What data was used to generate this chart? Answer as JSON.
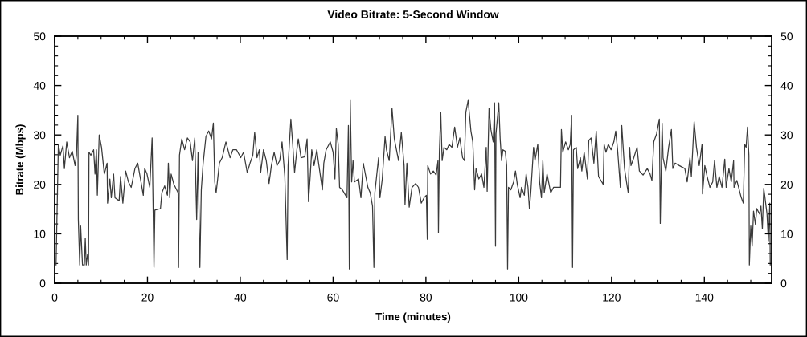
{
  "chart_data": {
    "type": "line",
    "title": "Video Bitrate: 5-Second Window",
    "xlabel": "Time (minutes)",
    "ylabel": "Bitrate (Mbps)",
    "x": [
      0.3,
      0.8,
      1.2,
      1.8,
      2.1,
      2.6,
      3.2,
      3.8,
      4.4,
      4.7,
      5.0,
      5.1,
      5.4,
      5.6,
      6.0,
      6.4,
      6.6,
      6.8,
      7.1,
      7.3,
      7.4,
      7.8,
      8.4,
      8.7,
      9.0,
      9.2,
      9.6,
      10.1,
      10.7,
      11.3,
      11.4,
      11.9,
      12.2,
      12.7,
      13.0,
      13.9,
      14.2,
      14.7,
      15.3,
      15.9,
      16.5,
      17.3,
      17.9,
      18.5,
      19.1,
      19.4,
      19.9,
      20.5,
      21.0,
      21.4,
      21.6,
      22.8,
      23.1,
      23.7,
      24.3,
      24.5,
      24.8,
      25.1,
      25.7,
      26.6,
      26.7,
      26.9,
      27.4,
      28.0,
      28.6,
      29.2,
      29.7,
      30.2,
      30.6,
      30.9,
      31.3,
      31.6,
      32.0,
      32.6,
      33.2,
      33.8,
      34.2,
      34.5,
      34.8,
      35.5,
      36.1,
      36.9,
      37.8,
      38.4,
      39.2,
      40.1,
      40.7,
      41.5,
      42.1,
      42.7,
      43.1,
      43.6,
      44.1,
      44.4,
      45.0,
      45.6,
      46.2,
      46.7,
      47.3,
      47.9,
      48.5,
      49.0,
      49.6,
      50.1,
      50.3,
      50.9,
      51.3,
      51.7,
      52.2,
      52.5,
      53.1,
      53.9,
      54.4,
      54.7,
      55.1,
      55.4,
      55.9,
      56.5,
      56.8,
      57.7,
      58.0,
      58.5,
      59.4,
      60.0,
      60.4,
      60.7,
      61.1,
      61.4,
      62.0,
      63.0,
      63.3,
      63.5,
      63.7,
      64.0,
      64.3,
      64.6,
      65.5,
      66.0,
      66.5,
      67.5,
      68.0,
      68.5,
      68.8,
      69.0,
      69.8,
      70.1,
      70.6,
      71.2,
      71.5,
      72.1,
      72.7,
      73.2,
      74.1,
      74.7,
      75.3,
      75.5,
      75.9,
      76.4,
      77.0,
      77.8,
      78.4,
      79.0,
      79.6,
      80.1,
      80.3,
      80.4,
      81.0,
      81.6,
      82.2,
      82.6,
      82.7,
      82.9,
      83.2,
      83.5,
      83.9,
      84.5,
      85.0,
      85.6,
      86.2,
      86.8,
      87.3,
      87.9,
      88.3,
      88.6,
      89.1,
      89.7,
      90.1,
      90.5,
      90.8,
      91.4,
      92.0,
      92.5,
      93.0,
      93.2,
      93.6,
      94.0,
      94.5,
      94.8,
      95.0,
      95.1,
      95.7,
      96.0,
      96.3,
      96.6,
      97.1,
      97.4,
      97.6,
      97.8,
      98.3,
      98.9,
      99.3,
      99.7,
      100.3,
      100.6,
      101.2,
      101.6,
      102.0,
      102.3,
      102.6,
      103.2,
      103.5,
      104.1,
      104.5,
      104.9,
      105.2,
      105.5,
      106.1,
      106.9,
      107.5,
      109.0,
      109.2,
      109.5,
      110.1,
      110.7,
      111.1,
      111.4,
      111.6,
      111.8,
      112.4,
      112.7,
      113.3,
      113.6,
      114.1,
      114.8,
      115.1,
      115.6,
      116.2,
      116.7,
      117.2,
      117.9,
      118.2,
      118.4,
      118.8,
      119.3,
      119.9,
      120.5,
      120.9,
      121.3,
      121.9,
      122.2,
      122.8,
      123.4,
      123.6,
      123.9,
      124.2,
      124.8,
      125.5,
      126.0,
      126.8,
      127.7,
      128.3,
      128.7,
      129.1,
      129.7,
      130.3,
      130.5,
      130.9,
      131.1,
      131.7,
      132.3,
      132.9,
      133.2,
      133.7,
      134.6,
      135.8,
      136.3,
      136.9,
      137.2,
      137.8,
      138.3,
      138.9,
      139.5,
      139.6,
      140.1,
      140.6,
      141.2,
      141.8,
      142.2,
      142.7,
      143.2,
      143.8,
      144.4,
      144.7,
      145.3,
      145.8,
      146.3,
      146.4,
      147.0,
      147.9,
      148.4,
      148.7,
      149.0,
      149.3,
      149.6,
      149.7,
      150.0,
      150.3,
      150.6,
      151.0,
      151.3,
      151.9,
      152.2,
      152.5,
      152.8,
      153.0,
      153.5,
      153.8,
      154.1,
      154.2
    ],
    "series": [
      {
        "color": "#3a3a3a",
        "values": [
          3.7,
          28.1,
          25.9,
          27.8,
          23.2,
          28.6,
          25.4,
          26.7,
          23.8,
          25.9,
          34.0,
          12.9,
          3.7,
          11.6,
          3.7,
          3.7,
          9.1,
          3.7,
          5.9,
          3.7,
          26.5,
          25.9,
          27.0,
          22.1,
          27.0,
          17.8,
          30.0,
          27.5,
          22.1,
          24.3,
          16.2,
          21.1,
          17.3,
          22.1,
          17.3,
          16.7,
          21.6,
          16.2,
          22.7,
          20.5,
          19.4,
          23.2,
          24.3,
          21.1,
          17.8,
          23.2,
          22.1,
          19.4,
          29.4,
          3.2,
          14.8,
          15.1,
          18.3,
          19.7,
          17.8,
          24.3,
          17.3,
          22.1,
          20.0,
          18.3,
          3.2,
          25.9,
          29.2,
          27.0,
          29.4,
          28.6,
          24.8,
          29.4,
          12.9,
          26.5,
          3.2,
          18.9,
          24.3,
          29.7,
          30.8,
          29.2,
          32.4,
          20.5,
          18.3,
          24.3,
          25.4,
          28.6,
          25.4,
          27.0,
          27.0,
          25.4,
          26.5,
          22.4,
          24.3,
          25.9,
          30.5,
          25.4,
          27.0,
          22.4,
          27.0,
          24.8,
          20.2,
          23.8,
          26.5,
          23.8,
          24.8,
          28.6,
          21.6,
          4.8,
          23.8,
          33.2,
          28.1,
          22.4,
          27.0,
          29.2,
          25.4,
          25.6,
          29.2,
          16.5,
          22.1,
          27.0,
          23.8,
          27.0,
          24.8,
          18.9,
          24.3,
          27.0,
          28.6,
          26.5,
          21.1,
          31.3,
          28.1,
          19.4,
          18.9,
          17.3,
          31.9,
          2.9,
          37.0,
          20.5,
          24.8,
          20.5,
          21.1,
          17.3,
          24.3,
          19.4,
          18.3,
          15.6,
          3.2,
          18.3,
          25.4,
          17.3,
          21.1,
          29.7,
          27.0,
          24.8,
          35.4,
          29.2,
          24.8,
          30.5,
          23.8,
          15.9,
          24.3,
          15.4,
          19.4,
          20.2,
          19.4,
          16.2,
          17.3,
          17.8,
          8.9,
          23.8,
          22.1,
          22.7,
          21.9,
          24.8,
          10.2,
          26.5,
          34.6,
          24.8,
          27.5,
          27.0,
          28.1,
          27.5,
          31.6,
          27.5,
          29.4,
          25.4,
          24.8,
          34.6,
          37.0,
          30.8,
          28.6,
          18.9,
          23.2,
          21.1,
          22.1,
          19.4,
          27.5,
          18.6,
          35.4,
          31.1,
          28.6,
          36.5,
          7.5,
          30.2,
          36.5,
          29.2,
          24.8,
          27.0,
          26.7,
          23.8,
          2.9,
          19.4,
          18.9,
          20.5,
          22.7,
          20.0,
          17.3,
          19.4,
          17.8,
          22.1,
          19.4,
          15.1,
          18.3,
          27.5,
          24.8,
          28.1,
          20.5,
          17.3,
          24.8,
          18.3,
          22.1,
          18.3,
          19.4,
          19.4,
          31.1,
          26.5,
          28.6,
          27.0,
          28.1,
          34.0,
          3.2,
          27.0,
          27.5,
          23.2,
          25.4,
          22.7,
          26.5,
          21.1,
          28.9,
          29.4,
          24.3,
          30.8,
          21.6,
          20.5,
          20.0,
          28.1,
          26.5,
          28.1,
          27.0,
          28.6,
          30.8,
          27.0,
          19.4,
          31.9,
          23.2,
          19.4,
          18.3,
          27.5,
          23.8,
          25.4,
          27.5,
          22.7,
          21.9,
          23.2,
          22.1,
          20.8,
          28.6,
          30.2,
          33.2,
          12.1,
          32.4,
          25.4,
          22.7,
          27.5,
          31.1,
          23.2,
          24.3,
          23.8,
          23.2,
          20.5,
          25.4,
          21.6,
          32.7,
          27.5,
          23.8,
          28.1,
          18.1,
          23.8,
          21.6,
          19.4,
          20.5,
          24.8,
          19.4,
          21.6,
          19.4,
          25.1,
          19.4,
          23.2,
          20.5,
          24.8,
          19.4,
          20.8,
          17.5,
          16.2,
          28.1,
          27.5,
          31.6,
          25.9,
          3.7,
          11.6,
          7.5,
          14.6,
          11.9,
          15.1,
          14.0,
          15.6,
          11.0,
          19.2,
          17.8,
          14.0,
          8.6,
          16.2,
          3.7
        ]
      }
    ],
    "xlim": [
      0,
      154.5
    ],
    "xticks": [
      0,
      {
        "value": 5,
        "label": null
      },
      {
        "value": 10,
        "label": null
      },
      {
        "value": 15,
        "label": null
      },
      20,
      {
        "value": 25,
        "label": null
      },
      {
        "value": 30,
        "label": null
      },
      {
        "value": 35,
        "label": null
      },
      40,
      {
        "value": 45,
        "label": null
      },
      {
        "value": 50,
        "label": null
      },
      {
        "value": 55,
        "label": null
      },
      60,
      {
        "value": 65,
        "label": null
      },
      {
        "value": 70,
        "label": null
      },
      {
        "value": 75,
        "label": null
      },
      80,
      {
        "value": 85,
        "label": null
      },
      {
        "value": 90,
        "label": null
      },
      {
        "value": 95,
        "label": null
      },
      100,
      {
        "value": 105,
        "label": null
      },
      {
        "value": 110,
        "label": null
      },
      {
        "value": 115,
        "label": null
      },
      120,
      {
        "value": 125,
        "label": null
      },
      {
        "value": 130,
        "label": null
      },
      {
        "value": 135,
        "label": null
      },
      140,
      {
        "value": 145,
        "label": null
      },
      {
        "value": 150,
        "label": null
      }
    ],
    "ylim": [
      0,
      50
    ],
    "yticks": [
      0,
      {
        "value": 2,
        "label": null
      },
      {
        "value": 4,
        "label": null
      },
      {
        "value": 6,
        "label": null
      },
      {
        "value": 8,
        "label": null
      },
      10,
      {
        "value": 12,
        "label": null
      },
      {
        "value": 14,
        "label": null
      },
      {
        "value": 16,
        "label": null
      },
      {
        "value": 18,
        "label": null
      },
      20,
      {
        "value": 22,
        "label": null
      },
      {
        "value": 24,
        "label": null
      },
      {
        "value": 26,
        "label": null
      },
      {
        "value": 28,
        "label": null
      },
      30,
      {
        "value": 32,
        "label": null
      },
      {
        "value": 34,
        "label": null
      },
      {
        "value": 36,
        "label": null
      },
      {
        "value": 38,
        "label": null
      },
      40,
      {
        "value": 42,
        "label": null
      },
      {
        "value": 44,
        "label": null
      },
      {
        "value": 46,
        "label": null
      },
      {
        "value": 48,
        "label": null
      },
      50
    ],
    "y2lim": [
      0,
      50
    ],
    "y2ticks": [
      0,
      {
        "value": 2,
        "label": null
      },
      {
        "value": 4,
        "label": null
      },
      {
        "value": 6,
        "label": null
      },
      {
        "value": 8,
        "label": null
      },
      10,
      {
        "value": 12,
        "label": null
      },
      {
        "value": 14,
        "label": null
      },
      {
        "value": 16,
        "label": null
      },
      {
        "value": 18,
        "label": null
      },
      20,
      {
        "value": 22,
        "label": null
      },
      {
        "value": 24,
        "label": null
      },
      {
        "value": 26,
        "label": null
      },
      {
        "value": 28,
        "label": null
      },
      30,
      {
        "value": 32,
        "label": null
      },
      {
        "value": 34,
        "label": null
      },
      {
        "value": 36,
        "label": null
      },
      {
        "value": 38,
        "label": null
      },
      40,
      {
        "value": 42,
        "label": null
      },
      {
        "value": 44,
        "label": null
      },
      {
        "value": 46,
        "label": null
      },
      {
        "value": 48,
        "label": null
      },
      50
    ],
    "grid": false
  }
}
